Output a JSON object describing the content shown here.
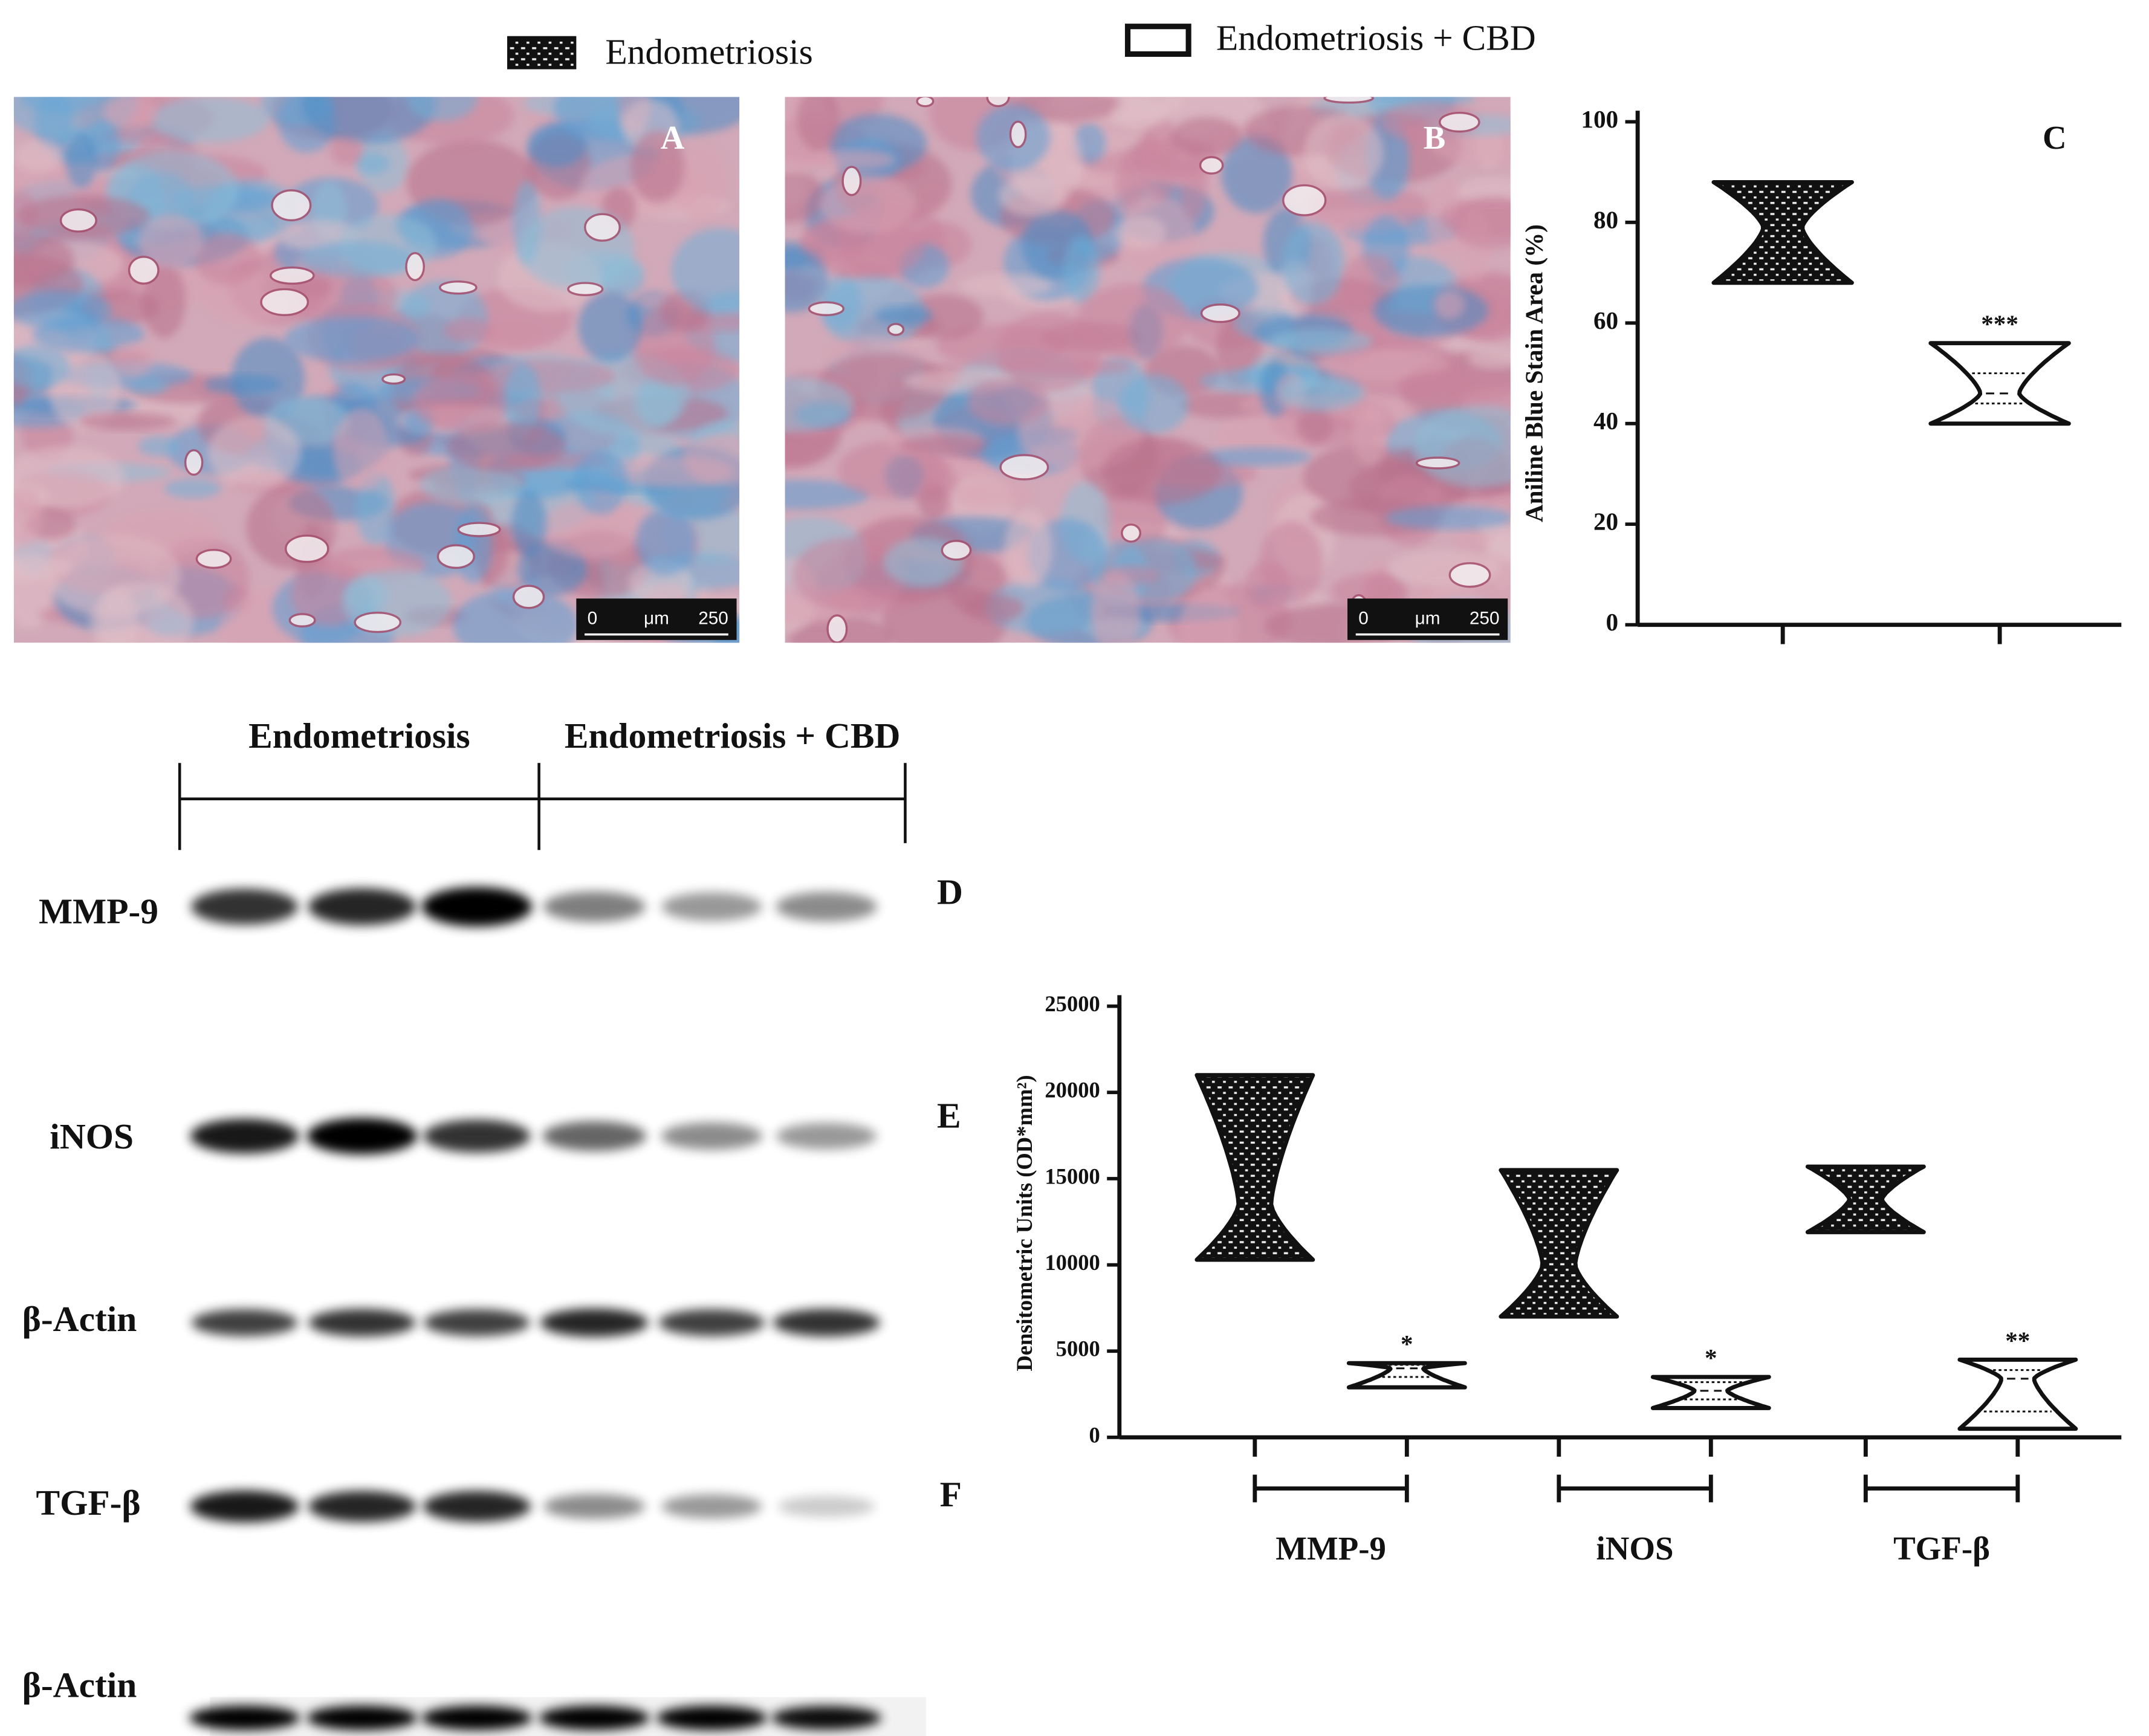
{
  "panels": [
    {
      "label": "A",
      "scale_bar": [
        "0",
        "μm",
        "250"
      ]
    },
    {
      "label": "B",
      "scale_bar": [
        "0",
        "μm",
        "250"
      ]
    }
  ],
  "blot": {
    "groups": [
      "Endometriosis",
      "Endometriosis + CBD"
    ],
    "rows": [
      "MMP-9",
      "iNOS",
      "β-Actin",
      "TGF-β",
      "β-Actin"
    ],
    "panel_labels": [
      "D",
      "E",
      "F"
    ]
  },
  "chart_data": [
    {
      "type": "violin",
      "panel_label": "C",
      "y_label": "Aniline Blue Stain Area (%)",
      "ylim": [
        0,
        100
      ],
      "yticks": [
        0,
        20,
        40,
        60,
        80,
        100
      ],
      "series": [
        {
          "name": "Endometriosis",
          "color": "#111111",
          "pattern": true,
          "values": [
            {
              "min": 68,
              "median": 79,
              "max": 88
            }
          ]
        },
        {
          "name": "Endometriosis + CBD",
          "color": "#ffffff",
          "pattern": false,
          "values": [
            {
              "min": 40,
              "q1": 44,
              "median": 46,
              "q3": 50,
              "max": 56
            }
          ],
          "annotations": [
            "***"
          ]
        }
      ]
    },
    {
      "type": "violin",
      "y_label": "Densitometric Units (OD*mm²)",
      "ylim": [
        0,
        25000
      ],
      "yticks": [
        0,
        5000,
        10000,
        15000,
        20000,
        25000
      ],
      "categories": [
        "MMP-9",
        "iNOS",
        "TGF-β"
      ],
      "series": [
        {
          "color": "#111111",
          "pattern": true,
          "values": [
            {
              "min": 10300,
              "median": 13500,
              "max": 21000
            },
            {
              "min": 7000,
              "median": 10000,
              "max": 15500
            },
            {
              "min": 11900,
              "median": 13800,
              "max": 15700
            }
          ]
        },
        {
          "color": "#ffffff",
          "pattern": false,
          "values": [
            {
              "min": 2900,
              "q1": 3500,
              "median": 4000,
              "q3": 4200,
              "max": 4300
            },
            {
              "min": 1700,
              "q1": 2200,
              "median": 2700,
              "q3": 3200,
              "max": 3500
            },
            {
              "min": 500,
              "q1": 1500,
              "median": 3400,
              "q3": 3900,
              "max": 4500
            }
          ],
          "annotations": [
            "*",
            "*",
            "**"
          ]
        }
      ]
    }
  ]
}
